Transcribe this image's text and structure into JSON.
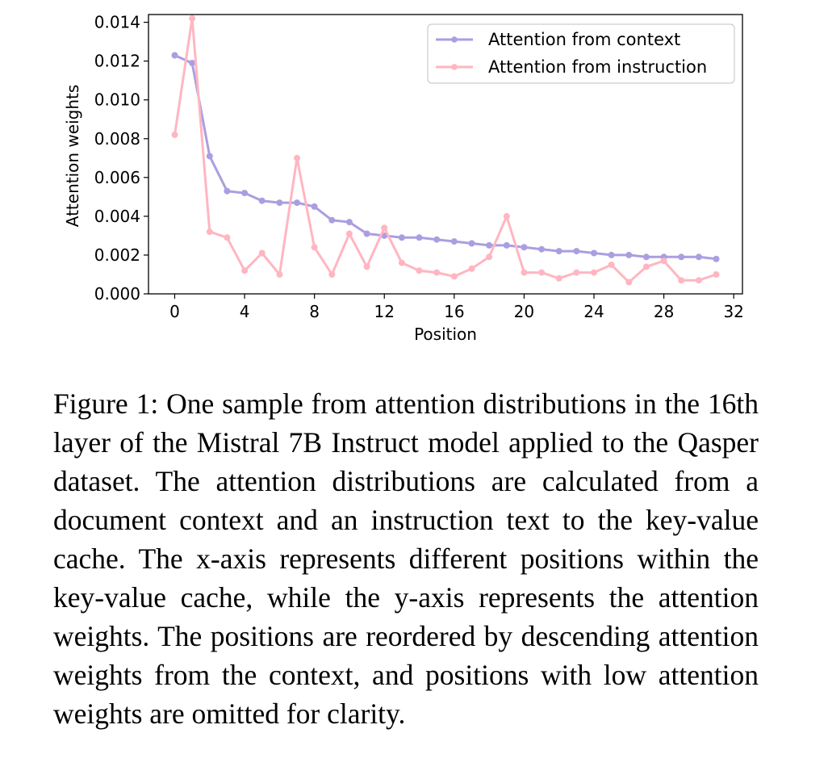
{
  "chart_data": {
    "type": "line",
    "xlabel": "Position",
    "ylabel": "Attention weights",
    "xlim": [
      -1.5,
      32.5
    ],
    "ylim": [
      0,
      0.0144
    ],
    "xticks": [
      0,
      4,
      8,
      12,
      16,
      20,
      24,
      28,
      32
    ],
    "xtick_labels": [
      "0",
      "4",
      "8",
      "12",
      "16",
      "20",
      "24",
      "28",
      "32"
    ],
    "yticks": [
      0,
      0.002,
      0.004,
      0.006,
      0.008,
      0.01,
      0.012,
      0.014
    ],
    "ytick_labels": [
      "0.000",
      "0.002",
      "0.004",
      "0.006",
      "0.008",
      "0.010",
      "0.012",
      "0.014"
    ],
    "grid": false,
    "legend_position": "top-right",
    "x": [
      0,
      1,
      2,
      3,
      4,
      5,
      6,
      7,
      8,
      9,
      10,
      11,
      12,
      13,
      14,
      15,
      16,
      17,
      18,
      19,
      20,
      21,
      22,
      23,
      24,
      25,
      26,
      27,
      28,
      29,
      30,
      31
    ],
    "series": [
      {
        "name": "Attention from context",
        "color": "#ab9ee0",
        "values": [
          0.0123,
          0.0119,
          0.0071,
          0.0053,
          0.0052,
          0.0048,
          0.0047,
          0.0047,
          0.0045,
          0.0038,
          0.0037,
          0.0031,
          0.003,
          0.0029,
          0.0029,
          0.0028,
          0.0027,
          0.0026,
          0.0025,
          0.0025,
          0.0024,
          0.0023,
          0.0022,
          0.0022,
          0.0021,
          0.002,
          0.002,
          0.0019,
          0.0019,
          0.0019,
          0.0019,
          0.0018
        ]
      },
      {
        "name": "Attention from instruction",
        "color": "#ffb6c1",
        "values": [
          0.0082,
          0.0142,
          0.0032,
          0.0029,
          0.0012,
          0.0021,
          0.001,
          0.007,
          0.0024,
          0.001,
          0.0031,
          0.0014,
          0.0034,
          0.0016,
          0.0012,
          0.0011,
          0.0009,
          0.0013,
          0.0019,
          0.004,
          0.0011,
          0.0011,
          0.0008,
          0.0011,
          0.0011,
          0.0015,
          0.0006,
          0.0014,
          0.0017,
          0.0007,
          0.0007,
          0.001
        ]
      }
    ]
  },
  "caption": "Figure 1: One sample from attention distributions in the 16th layer of the Mistral 7B Instruct model applied to the Qasper dataset. The attention distributions are calculated from a document context and an instruction text to the key-value cache. The x-axis represents different positions within the key-value cache, while the y-axis represents the attention weights. The positions are reordered by descending attention weights from the context, and positions with low attention weights are omitted for clarity."
}
